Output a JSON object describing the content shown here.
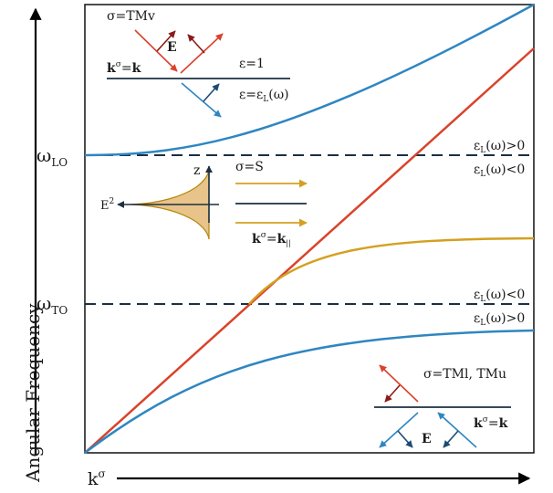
{
  "axes": {
    "y_label": "Angular Frequency",
    "x_label": "k",
    "x_label_sup": "σ"
  },
  "levels": {
    "omega_lo": "ω",
    "omega_lo_sub": "LO",
    "omega_to": "ω",
    "omega_to_sub": "TO"
  },
  "region_labels": {
    "lo_above": {
      "pre": "ε",
      "sub": "L",
      "post": "(ω)>0"
    },
    "lo_below": {
      "pre": "ε",
      "sub": "L",
      "post": "(ω)<0"
    },
    "to_above": {
      "pre": "ε",
      "sub": "L",
      "post": "(ω)<0"
    },
    "to_below": {
      "pre": "ε",
      "sub": "L",
      "post": "(ω)>0"
    }
  },
  "inset_tmv": {
    "title": "σ=TMv",
    "field": "E",
    "k_label": {
      "k": "k",
      "sup": "σ",
      "eq": "=",
      "k2": "k"
    },
    "eps_top": "ε=1",
    "eps_bottom": {
      "pre": "ε=ε",
      "sub": "L",
      "post": "(ω)"
    }
  },
  "inset_s": {
    "title": "σ=S",
    "z": "z",
    "e2": {
      "base": "E",
      "sup": "2"
    },
    "k_label": {
      "k": "k",
      "sup": "σ",
      "eq": "=",
      "k2": "k",
      "sub": "||"
    }
  },
  "inset_tm": {
    "title": "σ=TMl, TMu",
    "field": "E",
    "k_label": {
      "k": "k",
      "sup": "σ",
      "eq": "=",
      "k2": "k"
    }
  },
  "colors": {
    "blue": "#2e86c1",
    "red": "#d9432b",
    "gold": "#d4a020",
    "dark": "#1c2f42",
    "darkred": "#8b1a1a",
    "fill": "#e8c48a"
  }
}
